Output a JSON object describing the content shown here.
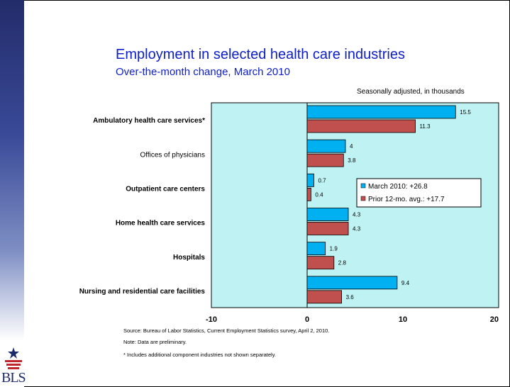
{
  "title": "Employment in selected health care industries",
  "subtitle": "Over-the-month change, March 2010",
  "units_note": "Seasonally adjusted, in thousands",
  "footnotes": {
    "source": "Source:  Bureau of Labor Statistics, Current Employment Statistics survey, April 2, 2010.",
    "note": "Note: Data are preliminary.",
    "asterisk": "* Includes additional component industries not shown separately."
  },
  "logo_text": "BLS",
  "colors": {
    "series1": "#00b0f0",
    "series2": "#c0504d",
    "plot_bg": "#bff3f3",
    "title": "#1020c8",
    "sidebar": "#232c6a"
  },
  "chart_data": {
    "type": "bar",
    "orientation": "horizontal",
    "categories": [
      "Ambulatory health care services*",
      "Offices of physicians",
      "Outpatient care centers",
      "Home health care services",
      "Hospitals",
      "Nursing and residential care facilities"
    ],
    "category_bold": [
      true,
      false,
      true,
      true,
      true,
      true
    ],
    "series": [
      {
        "name": "March 2010: +26.8",
        "values": [
          15.5,
          4,
          0.7,
          4.3,
          1.9,
          9.4
        ],
        "labels": [
          "15.5",
          "4",
          "0.7",
          "4.3",
          "1.9",
          "9.4"
        ],
        "color": "#00b0f0"
      },
      {
        "name": "Prior 12-mo. avg.: +17.7",
        "values": [
          11.3,
          3.8,
          0.4,
          4.3,
          2.8,
          3.6
        ],
        "labels": [
          "11.3",
          "3.8",
          "0.4",
          "4.3",
          "2.8",
          "3.6"
        ],
        "color": "#c0504d"
      }
    ],
    "xlim": [
      -10,
      20
    ],
    "xticks": [
      "-10",
      "0",
      "10",
      "20"
    ],
    "grid": false,
    "legend_position": "inside-right"
  }
}
